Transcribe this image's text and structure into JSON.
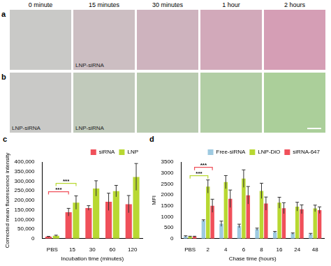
{
  "images": {
    "time_labels": [
      "0 minute",
      "15 minutes",
      "30 minutes",
      "1 hour",
      "2 hours"
    ],
    "rows": [
      {
        "letter": "a",
        "color": "#e8609a",
        "captions": [
          null,
          "LNP-siRNA",
          null,
          null,
          null
        ]
      },
      {
        "letter": "b",
        "color": "#7fd957",
        "captions": [
          "LNP-siRNA",
          "LNP-siRNA",
          null,
          null,
          null
        ]
      }
    ]
  },
  "chart_data": [
    {
      "panel": "c",
      "type": "bar",
      "x_label": "Incubation time (minutes)",
      "y_label": "Corrected mean fluorescence intensity",
      "categories": [
        "PBS",
        "15",
        "30",
        "60",
        "120"
      ],
      "series": [
        {
          "name": "siRNA",
          "color": "#f0505a",
          "values": [
            10000,
            138000,
            160000,
            192000,
            180000
          ],
          "errors": [
            2000,
            20000,
            12000,
            45000,
            45000
          ]
        },
        {
          "name": "LNP",
          "color": "#b8d832",
          "values": [
            15000,
            188000,
            262000,
            248000,
            322000
          ],
          "errors": [
            3000,
            35000,
            40000,
            30000,
            70000
          ]
        }
      ],
      "ylim": [
        0,
        400000
      ],
      "yticks": [
        0,
        {
          "value": 50000,
          "label": "50,000"
        },
        {
          "value": 100000,
          "label": "100,000"
        },
        {
          "value": 150000,
          "label": "150,000"
        },
        {
          "value": 200000,
          "label": "200,000"
        },
        {
          "value": 250000,
          "label": "250,000"
        },
        {
          "value": 300000,
          "label": "300,000"
        },
        {
          "value": 350000,
          "label": "350,000"
        },
        {
          "value": 400000,
          "label": "400,000"
        }
      ],
      "grid": false,
      "legend": "top-right",
      "annotations": [
        {
          "text": "***",
          "series": "siRNA",
          "from": "PBS",
          "to": "15"
        },
        {
          "text": "***",
          "series": "LNP",
          "from": "PBS",
          "to": "15"
        }
      ]
    },
    {
      "panel": "d",
      "type": "bar",
      "x_label": "Chase time (hours)",
      "y_label": "MFI",
      "categories": [
        "PBS",
        "2",
        "4",
        "6",
        "8",
        "16",
        "24",
        "48"
      ],
      "series": [
        {
          "name": "Free-siRNA",
          "color": "#9ecae1",
          "values": [
            100,
            820,
            680,
            580,
            430,
            300,
            230,
            200
          ],
          "errors": [
            30,
            40,
            120,
            80,
            50,
            30,
            30,
            40
          ]
        },
        {
          "name": "LNP-DiO",
          "color": "#b8d832",
          "values": [
            90,
            2380,
            2580,
            2740,
            2180,
            1640,
            1460,
            1380
          ],
          "errors": [
            20,
            300,
            300,
            400,
            350,
            250,
            200,
            150
          ]
        },
        {
          "name": "siRNA-647",
          "color": "#f0505a",
          "values": [
            90,
            1500,
            1820,
            1980,
            1600,
            1390,
            1340,
            1300
          ],
          "errors": [
            20,
            300,
            400,
            400,
            300,
            250,
            200,
            150
          ]
        }
      ],
      "ylim": [
        0,
        3500
      ],
      "yticks": [
        0,
        500,
        1000,
        1500,
        2000,
        2500,
        3000,
        3500
      ],
      "grid": false,
      "legend": "top-right",
      "annotations": [
        {
          "text": "***",
          "series": "LNP-DiO",
          "from": "PBS",
          "to": "2"
        },
        {
          "text": "***",
          "series": "siRNA-647",
          "from": "PBS",
          "to": "2"
        }
      ]
    }
  ]
}
